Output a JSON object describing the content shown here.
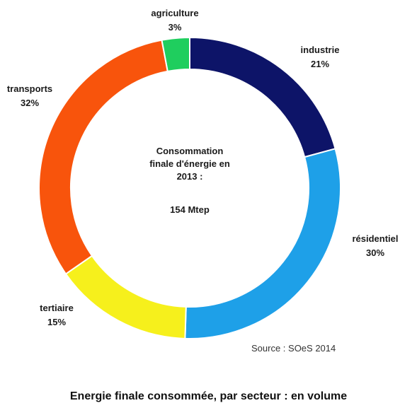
{
  "chart_data": {
    "type": "pie",
    "title": "Energie finale consommée, par secteur : en volume",
    "center_text": [
      "Consommation",
      "finale d'énergie en",
      "2013 :",
      "154 Mtep"
    ],
    "source": "Source : SOeS 2014",
    "slices": [
      {
        "label": "industrie",
        "value": 21,
        "value_label": "21%",
        "color": "#0d1468"
      },
      {
        "label": "résidentiel",
        "value": 30,
        "value_label": "30%",
        "color": "#1ea0e8"
      },
      {
        "label": "tertiaire",
        "value": 15,
        "value_label": "15%",
        "color": "#f6f01c"
      },
      {
        "label": "transports",
        "value": 32,
        "value_label": "32%",
        "color": "#f8540c"
      },
      {
        "label": "agriculture",
        "value": 3,
        "value_label": "3%",
        "color": "#1fce5e"
      }
    ]
  }
}
